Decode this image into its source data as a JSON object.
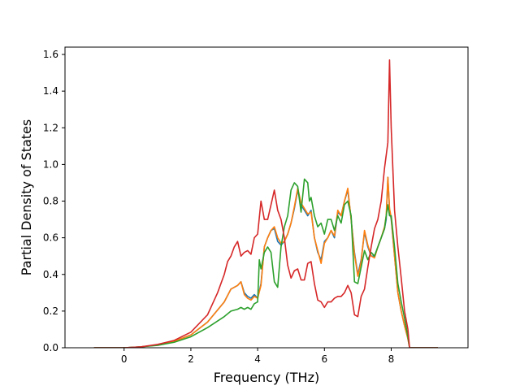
{
  "chart_data": {
    "type": "line",
    "title": "",
    "xlabel": "Frequency (THz)",
    "ylabel": "Partial Density of States",
    "xlim": [
      -1.77,
      10.3
    ],
    "ylim": [
      0.0,
      1.64
    ],
    "xticks": [
      0,
      2,
      4,
      6,
      8
    ],
    "yticks": [
      0.0,
      0.2,
      0.4,
      0.6,
      0.8,
      1.0,
      1.2,
      1.4,
      1.6
    ],
    "xtick_labels": [
      "0",
      "2",
      "4",
      "6",
      "8"
    ],
    "ytick_labels": [
      "0.0",
      "0.2",
      "0.4",
      "0.6",
      "0.8",
      "1.0",
      "1.2",
      "1.4",
      "1.6"
    ],
    "grid": false,
    "legend": false,
    "series": [
      {
        "color": "#1f77b4",
        "x": [
          -0.9,
          -0.5,
          0.0,
          0.5,
          1.0,
          1.5,
          2.0,
          2.5,
          3.0,
          3.2,
          3.4,
          3.5,
          3.6,
          3.7,
          3.8,
          3.9,
          4.0,
          4.1,
          4.2,
          4.3,
          4.4,
          4.5,
          4.6,
          4.7,
          4.8,
          4.9,
          5.0,
          5.1,
          5.2,
          5.3,
          5.4,
          5.5,
          5.6,
          5.7,
          5.8,
          5.9,
          6.0,
          6.1,
          6.2,
          6.3,
          6.4,
          6.5,
          6.6,
          6.7,
          6.8,
          6.9,
          7.0,
          7.1,
          7.2,
          7.3,
          7.4,
          7.5,
          7.6,
          7.7,
          7.8,
          7.85,
          7.9,
          7.95,
          8.0,
          8.1,
          8.2,
          8.3,
          8.4,
          8.5,
          8.55,
          8.6,
          9.0,
          9.4
        ],
        "y": [
          0.0,
          0.0,
          0.0,
          0.005,
          0.015,
          0.035,
          0.07,
          0.14,
          0.25,
          0.32,
          0.34,
          0.36,
          0.3,
          0.28,
          0.27,
          0.29,
          0.27,
          0.35,
          0.55,
          0.6,
          0.64,
          0.65,
          0.58,
          0.56,
          0.58,
          0.62,
          0.68,
          0.76,
          0.86,
          0.78,
          0.75,
          0.72,
          0.75,
          0.6,
          0.52,
          0.48,
          0.58,
          0.6,
          0.64,
          0.6,
          0.74,
          0.72,
          0.8,
          0.86,
          0.7,
          0.52,
          0.4,
          0.48,
          0.63,
          0.55,
          0.5,
          0.5,
          0.55,
          0.6,
          0.65,
          0.7,
          0.93,
          0.75,
          0.7,
          0.5,
          0.3,
          0.2,
          0.12,
          0.05,
          0.0,
          0.0,
          0.0,
          0.0
        ]
      },
      {
        "color": "#ff7f0e",
        "x": [
          -0.9,
          -0.5,
          0.0,
          0.5,
          1.0,
          1.5,
          2.0,
          2.5,
          3.0,
          3.2,
          3.4,
          3.5,
          3.6,
          3.7,
          3.8,
          3.9,
          4.0,
          4.1,
          4.2,
          4.3,
          4.4,
          4.5,
          4.6,
          4.7,
          4.8,
          4.9,
          5.0,
          5.1,
          5.2,
          5.3,
          5.4,
          5.5,
          5.6,
          5.7,
          5.8,
          5.9,
          6.0,
          6.1,
          6.2,
          6.3,
          6.4,
          6.5,
          6.6,
          6.7,
          6.8,
          6.9,
          7.0,
          7.1,
          7.2,
          7.3,
          7.4,
          7.5,
          7.6,
          7.7,
          7.8,
          7.85,
          7.9,
          7.95,
          8.0,
          8.1,
          8.2,
          8.3,
          8.4,
          8.5,
          8.55,
          8.6,
          9.0,
          9.4
        ],
        "y": [
          0.0,
          0.0,
          0.0,
          0.005,
          0.015,
          0.035,
          0.07,
          0.14,
          0.25,
          0.32,
          0.34,
          0.36,
          0.29,
          0.27,
          0.26,
          0.28,
          0.27,
          0.34,
          0.55,
          0.6,
          0.64,
          0.66,
          0.6,
          0.57,
          0.58,
          0.62,
          0.68,
          0.77,
          0.87,
          0.79,
          0.76,
          0.73,
          0.74,
          0.6,
          0.53,
          0.46,
          0.57,
          0.6,
          0.64,
          0.61,
          0.75,
          0.72,
          0.8,
          0.87,
          0.7,
          0.51,
          0.39,
          0.47,
          0.64,
          0.56,
          0.5,
          0.49,
          0.55,
          0.6,
          0.66,
          0.72,
          0.93,
          0.76,
          0.71,
          0.5,
          0.3,
          0.2,
          0.12,
          0.05,
          0.0,
          0.0,
          0.0,
          0.0
        ]
      },
      {
        "color": "#2ca02c",
        "x": [
          -0.9,
          -0.5,
          0.0,
          0.5,
          1.0,
          1.5,
          2.0,
          2.5,
          3.0,
          3.2,
          3.4,
          3.5,
          3.6,
          3.7,
          3.8,
          3.9,
          4.0,
          4.05,
          4.1,
          4.2,
          4.3,
          4.4,
          4.5,
          4.6,
          4.7,
          4.8,
          4.9,
          5.0,
          5.1,
          5.2,
          5.3,
          5.4,
          5.5,
          5.55,
          5.6,
          5.7,
          5.8,
          5.9,
          6.0,
          6.1,
          6.2,
          6.3,
          6.4,
          6.5,
          6.6,
          6.7,
          6.8,
          6.9,
          7.0,
          7.1,
          7.2,
          7.3,
          7.4,
          7.5,
          7.6,
          7.7,
          7.8,
          7.85,
          7.9,
          7.95,
          8.0,
          8.1,
          8.2,
          8.3,
          8.4,
          8.5,
          8.55,
          8.6,
          9.0,
          9.4
        ],
        "y": [
          0.0,
          0.0,
          0.0,
          0.005,
          0.013,
          0.03,
          0.06,
          0.11,
          0.17,
          0.2,
          0.21,
          0.22,
          0.21,
          0.22,
          0.21,
          0.24,
          0.25,
          0.48,
          0.43,
          0.52,
          0.55,
          0.52,
          0.36,
          0.33,
          0.55,
          0.66,
          0.72,
          0.86,
          0.9,
          0.88,
          0.74,
          0.92,
          0.9,
          0.8,
          0.82,
          0.72,
          0.66,
          0.68,
          0.62,
          0.7,
          0.7,
          0.64,
          0.72,
          0.68,
          0.78,
          0.8,
          0.72,
          0.36,
          0.35,
          0.44,
          0.53,
          0.48,
          0.52,
          0.5,
          0.55,
          0.6,
          0.65,
          0.72,
          0.78,
          0.72,
          0.72,
          0.55,
          0.35,
          0.25,
          0.16,
          0.06,
          0.0,
          0.0,
          0.0,
          0.0
        ]
      },
      {
        "color": "#d62728",
        "x": [
          -0.9,
          -0.5,
          0.0,
          0.5,
          1.0,
          1.5,
          2.0,
          2.5,
          2.8,
          3.0,
          3.1,
          3.2,
          3.3,
          3.4,
          3.5,
          3.6,
          3.7,
          3.8,
          3.9,
          4.0,
          4.1,
          4.2,
          4.3,
          4.4,
          4.5,
          4.6,
          4.7,
          4.8,
          4.9,
          5.0,
          5.1,
          5.2,
          5.3,
          5.4,
          5.5,
          5.6,
          5.7,
          5.8,
          5.9,
          6.0,
          6.1,
          6.2,
          6.3,
          6.4,
          6.5,
          6.6,
          6.7,
          6.8,
          6.9,
          7.0,
          7.1,
          7.2,
          7.3,
          7.4,
          7.5,
          7.6,
          7.7,
          7.8,
          7.85,
          7.9,
          7.95,
          8.0,
          8.1,
          8.2,
          8.3,
          8.4,
          8.5,
          8.55,
          8.6,
          9.0,
          9.4
        ],
        "y": [
          0.0,
          0.0,
          0.0,
          0.005,
          0.018,
          0.04,
          0.085,
          0.18,
          0.3,
          0.4,
          0.47,
          0.5,
          0.55,
          0.58,
          0.5,
          0.52,
          0.53,
          0.51,
          0.6,
          0.62,
          0.8,
          0.7,
          0.7,
          0.78,
          0.86,
          0.75,
          0.7,
          0.6,
          0.45,
          0.38,
          0.42,
          0.43,
          0.37,
          0.37,
          0.46,
          0.47,
          0.35,
          0.26,
          0.25,
          0.22,
          0.25,
          0.25,
          0.27,
          0.28,
          0.28,
          0.3,
          0.34,
          0.3,
          0.18,
          0.17,
          0.28,
          0.32,
          0.44,
          0.55,
          0.65,
          0.7,
          0.8,
          0.98,
          1.05,
          1.12,
          1.57,
          1.2,
          0.75,
          0.55,
          0.38,
          0.2,
          0.1,
          0.0,
          0.0,
          0.0,
          0.0
        ]
      }
    ]
  }
}
